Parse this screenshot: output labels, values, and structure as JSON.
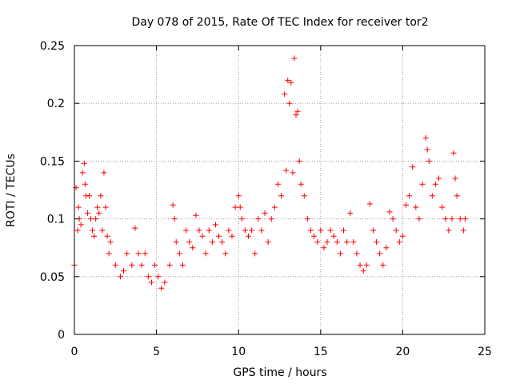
{
  "chart_data": {
    "type": "scatter",
    "title": "Day 078 of 2015, Rate Of TEC Index for receiver tor2",
    "xlabel": "GPS time / hours",
    "ylabel": "ROTI / TECUs",
    "xlim": [
      0,
      25
    ],
    "ylim": [
      0,
      0.25
    ],
    "xticks": [
      0,
      5,
      10,
      15,
      20,
      25
    ],
    "yticks": [
      0,
      0.05,
      0.1,
      0.15,
      0.2,
      0.25
    ],
    "xtick_labels": [
      "0",
      "5",
      "10",
      "15",
      "20",
      "25"
    ],
    "ytick_labels": [
      "0",
      "0.05",
      "0.1",
      "0.15",
      "0.2",
      "0.25"
    ],
    "grid": true,
    "marker": "plus",
    "color": "#ff0000",
    "series": [
      {
        "name": "ROTI",
        "x": [
          0.0,
          0.1,
          0.2,
          0.25,
          0.3,
          0.4,
          0.5,
          0.6,
          0.65,
          0.7,
          0.8,
          0.9,
          1.0,
          1.1,
          1.2,
          1.3,
          1.4,
          1.5,
          1.6,
          1.7,
          1.8,
          1.9,
          2.0,
          2.1,
          2.2,
          2.5,
          2.8,
          3.0,
          3.2,
          3.5,
          3.7,
          3.9,
          4.1,
          4.3,
          4.5,
          4.7,
          4.9,
          5.1,
          5.3,
          5.5,
          5.8,
          6.0,
          6.1,
          6.2,
          6.4,
          6.6,
          6.8,
          7.0,
          7.2,
          7.4,
          7.6,
          7.8,
          8.0,
          8.2,
          8.4,
          8.6,
          8.8,
          9.0,
          9.2,
          9.4,
          9.6,
          9.8,
          10.0,
          10.1,
          10.2,
          10.4,
          10.6,
          10.8,
          11.0,
          11.2,
          11.4,
          11.6,
          11.8,
          12.0,
          12.2,
          12.4,
          12.6,
          12.8,
          12.9,
          13.0,
          13.1,
          13.2,
          13.3,
          13.4,
          13.5,
          13.6,
          13.7,
          13.8,
          14.0,
          14.2,
          14.4,
          14.6,
          14.8,
          15.0,
          15.2,
          15.4,
          15.6,
          15.8,
          16.0,
          16.2,
          16.4,
          16.6,
          16.8,
          17.0,
          17.2,
          17.4,
          17.6,
          17.8,
          18.0,
          18.2,
          18.4,
          18.6,
          18.8,
          19.0,
          19.2,
          19.4,
          19.6,
          19.8,
          20.0,
          20.2,
          20.4,
          20.6,
          20.8,
          21.0,
          21.2,
          21.4,
          21.5,
          21.6,
          21.8,
          22.0,
          22.2,
          22.4,
          22.6,
          22.8,
          23.0,
          23.1,
          23.2,
          23.3,
          23.5,
          23.7,
          23.8
        ],
        "y": [
          0.06,
          0.127,
          0.09,
          0.11,
          0.1,
          0.095,
          0.14,
          0.148,
          0.13,
          0.12,
          0.105,
          0.12,
          0.1,
          0.09,
          0.085,
          0.1,
          0.11,
          0.105,
          0.12,
          0.09,
          0.14,
          0.11,
          0.085,
          0.07,
          0.08,
          0.06,
          0.05,
          0.055,
          0.07,
          0.06,
          0.092,
          0.07,
          0.06,
          0.07,
          0.05,
          0.045,
          0.06,
          0.05,
          0.04,
          0.045,
          0.06,
          0.112,
          0.1,
          0.08,
          0.07,
          0.06,
          0.09,
          0.08,
          0.075,
          0.103,
          0.09,
          0.085,
          0.07,
          0.09,
          0.08,
          0.095,
          0.085,
          0.08,
          0.07,
          0.09,
          0.085,
          0.11,
          0.12,
          0.11,
          0.1,
          0.09,
          0.085,
          0.09,
          0.07,
          0.1,
          0.09,
          0.105,
          0.08,
          0.1,
          0.11,
          0.13,
          0.12,
          0.208,
          0.142,
          0.22,
          0.2,
          0.218,
          0.14,
          0.239,
          0.19,
          0.193,
          0.15,
          0.13,
          0.12,
          0.1,
          0.09,
          0.085,
          0.08,
          0.09,
          0.075,
          0.08,
          0.09,
          0.085,
          0.08,
          0.07,
          0.09,
          0.08,
          0.105,
          0.08,
          0.07,
          0.06,
          0.055,
          0.06,
          0.113,
          0.09,
          0.08,
          0.07,
          0.06,
          0.075,
          0.106,
          0.1,
          0.09,
          0.08,
          0.085,
          0.112,
          0.12,
          0.145,
          0.11,
          0.1,
          0.13,
          0.17,
          0.16,
          0.15,
          0.12,
          0.13,
          0.135,
          0.11,
          0.1,
          0.09,
          0.1,
          0.157,
          0.135,
          0.12,
          0.1,
          0.09,
          0.1
        ]
      }
    ]
  }
}
